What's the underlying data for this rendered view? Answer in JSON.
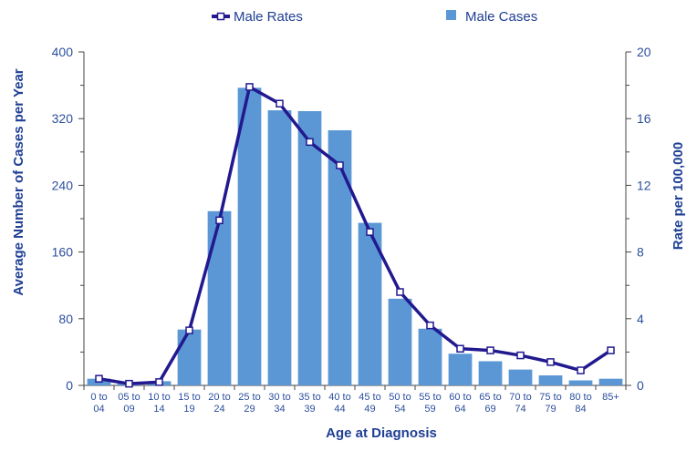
{
  "chart_data": {
    "type": "bar",
    "categories": [
      [
        "0 to",
        "04"
      ],
      [
        "05 to",
        "09"
      ],
      [
        "10 to",
        "14"
      ],
      [
        "15 to",
        "19"
      ],
      [
        "20 to",
        "24"
      ],
      [
        "25 to",
        "29"
      ],
      [
        "30 to",
        "34"
      ],
      [
        "35 to",
        "39"
      ],
      [
        "40 to",
        "44"
      ],
      [
        "45 to",
        "49"
      ],
      [
        "50 to",
        "54"
      ],
      [
        "55 to",
        "59"
      ],
      [
        "60 to",
        "64"
      ],
      [
        "65 to",
        "69"
      ],
      [
        "70 to",
        "74"
      ],
      [
        "75 to",
        "79"
      ],
      [
        "80 to",
        "84"
      ],
      [
        "85+",
        ""
      ]
    ],
    "series": [
      {
        "name": "Male Cases",
        "type": "bar",
        "axis": "left",
        "color": "#5b97d5",
        "values": [
          8,
          3,
          5,
          67,
          209,
          357,
          330,
          329,
          306,
          195,
          104,
          68,
          38,
          29,
          19,
          12,
          6,
          8
        ]
      },
      {
        "name": "Male Rates",
        "type": "line",
        "axis": "right",
        "color": "#22198f",
        "values": [
          0.4,
          0.1,
          0.2,
          3.3,
          9.9,
          17.9,
          16.9,
          14.6,
          13.2,
          9.2,
          5.6,
          3.6,
          2.2,
          2.1,
          1.8,
          1.4,
          0.9,
          2.1
        ]
      }
    ],
    "ylabel": "Average Number of Cases per Year",
    "y2label": "Rate per 100,000",
    "xlabel": "Age at Diagnosis",
    "ylim": [
      0,
      400
    ],
    "yticks": [
      0,
      80,
      160,
      240,
      320,
      400
    ],
    "y2lim": [
      0,
      20
    ],
    "y2ticks": [
      0,
      4,
      8,
      12,
      16,
      20
    ],
    "legend_position": "top-center",
    "grid": false
  }
}
